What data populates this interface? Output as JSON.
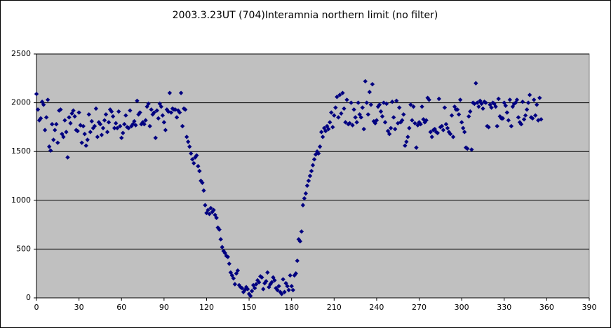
{
  "chart_data": {
    "type": "scatter",
    "title": "2003.3.23UT (704)Interamnia northern limit (no filter)",
    "color": "#000080",
    "grid": true,
    "xlim": [
      0,
      390
    ],
    "ylim": [
      0,
      2500
    ],
    "xticks": [
      0,
      30,
      60,
      90,
      120,
      150,
      180,
      210,
      240,
      270,
      300,
      330,
      360,
      390
    ],
    "yticks": [
      0,
      500,
      1000,
      1500,
      2000,
      2500
    ],
    "x": [
      0,
      1,
      2,
      3,
      4,
      5,
      6,
      7,
      8,
      9,
      10,
      11,
      12,
      13,
      14,
      15,
      16,
      17,
      18,
      19,
      20,
      21,
      22,
      23,
      24,
      25,
      26,
      27,
      28,
      29,
      30,
      31,
      32,
      33,
      34,
      35,
      36,
      37,
      38,
      39,
      40,
      41,
      42,
      43,
      44,
      45,
      46,
      47,
      48,
      49,
      50,
      51,
      52,
      53,
      54,
      55,
      56,
      57,
      58,
      59,
      60,
      61,
      62,
      63,
      64,
      65,
      66,
      67,
      68,
      69,
      70,
      71,
      72,
      73,
      74,
      75,
      76,
      77,
      78,
      79,
      80,
      81,
      82,
      83,
      84,
      85,
      86,
      87,
      88,
      89,
      90,
      91,
      92,
      93,
      94,
      95,
      96,
      97,
      98,
      99,
      100,
      101,
      102,
      103,
      104,
      105,
      106,
      107,
      108,
      109,
      110,
      111,
      112,
      113,
      114,
      115,
      116,
      117,
      118,
      119,
      120,
      121,
      122,
      123,
      124,
      125,
      126,
      127,
      128,
      129,
      130,
      131,
      132,
      133,
      134,
      135,
      136,
      137,
      138,
      139,
      140,
      141,
      142,
      143,
      144,
      145,
      146,
      147,
      148,
      149,
      150,
      151,
      152,
      153,
      154,
      155,
      156,
      157,
      158,
      159,
      160,
      161,
      162,
      163,
      164,
      165,
      166,
      167,
      168,
      169,
      170,
      171,
      172,
      173,
      174,
      175,
      176,
      177,
      178,
      179,
      180,
      181,
      182,
      183,
      184,
      185,
      186,
      187,
      188,
      189,
      190,
      191,
      192,
      193,
      194,
      195,
      196,
      197,
      198,
      199,
      200,
      201,
      202,
      203,
      204,
      205,
      206,
      207,
      208,
      209,
      210,
      211,
      212,
      213,
      214,
      215,
      216,
      217,
      218,
      219,
      220,
      221,
      222,
      223,
      224,
      225,
      226,
      227,
      228,
      229,
      230,
      231,
      232,
      233,
      234,
      235,
      236,
      237,
      238,
      239,
      240,
      241,
      242,
      243,
      244,
      245,
      246,
      247,
      248,
      249,
      250,
      251,
      252,
      253,
      254,
      255,
      256,
      257,
      258,
      259,
      260,
      261,
      262,
      263,
      264,
      265,
      266,
      267,
      268,
      269,
      270,
      271,
      272,
      273,
      274,
      275,
      276,
      277,
      278,
      279,
      280,
      281,
      282,
      283,
      284,
      285,
      286,
      287,
      288,
      289,
      290,
      291,
      292,
      293,
      294,
      295,
      296,
      297,
      298,
      299,
      300,
      301,
      302,
      303,
      304,
      305,
      306,
      307,
      308,
      309,
      310,
      311,
      312,
      313,
      314,
      315,
      316,
      317,
      318,
      319,
      320,
      321,
      322,
      323,
      324,
      325,
      326,
      327,
      328,
      329,
      330,
      331,
      332,
      333,
      334,
      335,
      336,
      337,
      338,
      339,
      340,
      341,
      342,
      343,
      344,
      345,
      346,
      347,
      348,
      349,
      350,
      351,
      352,
      353,
      354,
      355,
      356
    ],
    "values": [
      2090,
      1930,
      1820,
      1840,
      2010,
      1980,
      1720,
      1850,
      2030,
      1550,
      1510,
      1780,
      1620,
      1720,
      1780,
      1590,
      1920,
      1930,
      1680,
      1650,
      1820,
      1700,
      1440,
      1850,
      1790,
      1890,
      1920,
      1860,
      1720,
      1710,
      1900,
      1770,
      1590,
      1760,
      1680,
      1560,
      1620,
      1880,
      1700,
      1810,
      1740,
      1760,
      1940,
      1650,
      1800,
      1780,
      1670,
      1740,
      1820,
      1880,
      1700,
      1800,
      1930,
      1910,
      1860,
      1740,
      1790,
      1740,
      1910,
      1760,
      1640,
      1690,
      1780,
      1870,
      1750,
      1740,
      1920,
      1760,
      1780,
      1810,
      1770,
      2020,
      1880,
      1900,
      1780,
      1800,
      1780,
      1820,
      1960,
      1990,
      1760,
      1930,
      1880,
      1900,
      1640,
      1920,
      1840,
      1990,
      1960,
      1870,
      1800,
      1720,
      1930,
      1910,
      2100,
      1900,
      1940,
      1930,
      1930,
      1850,
      1920,
      1900,
      2100,
      1760,
      1940,
      1930,
      1650,
      1600,
      1550,
      1480,
      1420,
      1380,
      1440,
      1460,
      1350,
      1300,
      1200,
      1180,
      1100,
      950,
      870,
      900,
      860,
      920,
      880,
      900,
      850,
      820,
      720,
      700,
      600,
      520,
      480,
      460,
      430,
      420,
      350,
      260,
      230,
      200,
      140,
      250,
      280,
      130,
      110,
      100,
      60,
      80,
      110,
      90,
      40,
      20,
      70,
      130,
      100,
      140,
      180,
      160,
      220,
      210,
      90,
      150,
      170,
      260,
      110,
      140,
      160,
      210,
      180,
      100,
      80,
      120,
      60,
      40,
      190,
      60,
      150,
      120,
      80,
      230,
      120,
      80,
      230,
      250,
      380,
      600,
      580,
      680,
      950,
      1020,
      1070,
      1150,
      1200,
      1250,
      1300,
      1360,
      1420,
      1470,
      1500,
      1480,
      1550,
      1700,
      1650,
      1740,
      1710,
      1760,
      1730,
      1800,
      1900,
      1750,
      1870,
      1950,
      2060,
      1850,
      2080,
      1890,
      2100,
      1940,
      1800,
      2030,
      1780,
      1790,
      2000,
      1770,
      1930,
      1850,
      1800,
      2000,
      1880,
      1850,
      1950,
      1730,
      2220,
      2000,
      1880,
      2110,
      1980,
      2190,
      1810,
      1790,
      1820,
      1960,
      1980,
      1910,
      1860,
      2000,
      1800,
      1990,
      1710,
      1680,
      1740,
      2010,
      1850,
      1730,
      2020,
      1790,
      1950,
      1800,
      1820,
      1880,
      1560,
      1600,
      1650,
      1740,
      1980,
      1820,
      1960,
      1790,
      1540,
      1770,
      1800,
      1780,
      1960,
      1830,
      1800,
      1820,
      2050,
      2030,
      1700,
      1650,
      1720,
      1730,
      1700,
      1690,
      2040,
      1750,
      1760,
      1720,
      1950,
      1780,
      1740,
      1700,
      1680,
      1870,
      1650,
      1960,
      1930,
      1930,
      1880,
      2030,
      1800,
      1740,
      1700,
      1540,
      1530,
      1860,
      1910,
      1520,
      2000,
      1990,
      2200,
      2000,
      1960,
      2020,
      1990,
      1940,
      2010,
      2000,
      1760,
      1750,
      1980,
      1950,
      2000,
      1990,
      1960,
      1760,
      2040,
      1860,
      1840,
      1840,
      2000,
      1970,
      1900,
      1820,
      2030,
      1760,
      1960,
      1990,
      2000,
      2030,
      1850,
      1800,
      1780,
      2010,
      1830,
      1870,
      1930,
      2000,
      2080,
      1850,
      1840,
      2030,
      1870,
      1980,
      1820,
      2050,
      1830
    ]
  }
}
